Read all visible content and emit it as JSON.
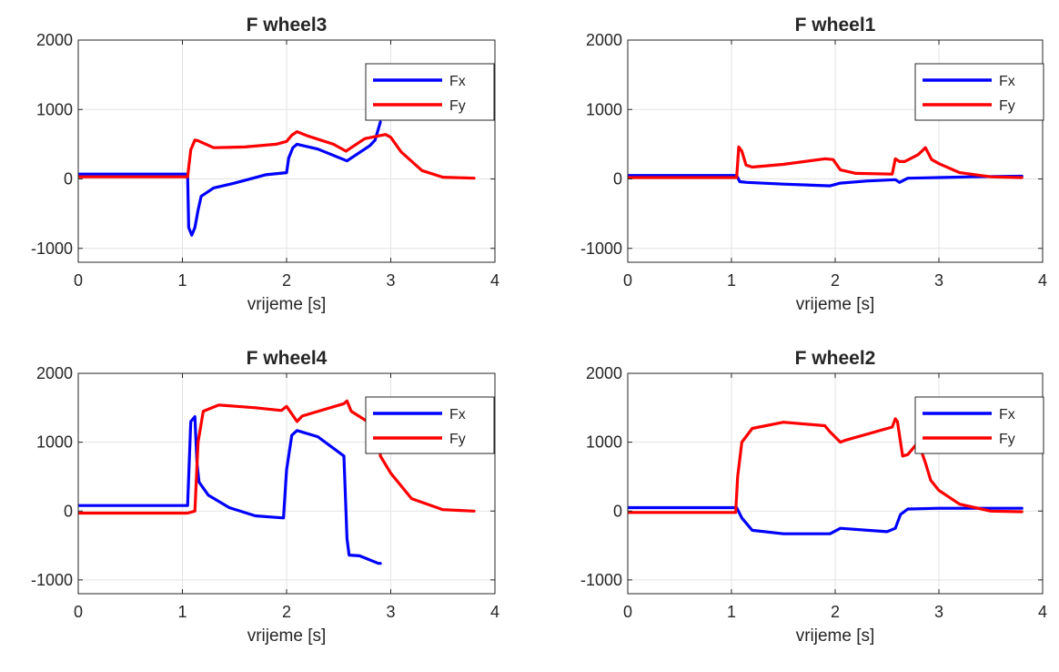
{
  "figure": {
    "colors": {
      "Fx": "#0000ff",
      "Fy": "#ff0000",
      "grid": "#e3e3e3",
      "axis": "#262626"
    }
  },
  "chart_data": [
    {
      "type": "line",
      "title": "F wheel3",
      "xlabel": "vrijeme [s]",
      "ylabel": "",
      "xlim": [
        0,
        4
      ],
      "ylim": [
        -1200,
        2000
      ],
      "xticks": [
        0,
        1,
        2,
        3,
        4
      ],
      "yticks": [
        -1000,
        0,
        1000,
        2000
      ],
      "grid": true,
      "legend": "top-right",
      "series": [
        {
          "name": "Fx",
          "color": "#0000ff",
          "x": [
            0,
            1.05,
            1.06,
            1.09,
            1.12,
            1.15,
            1.18,
            1.3,
            1.5,
            1.8,
            2.0,
            2.02,
            2.06,
            2.1,
            2.3,
            2.58,
            2.65,
            2.8,
            2.85,
            2.9
          ],
          "y": [
            70,
            70,
            -700,
            -810,
            -700,
            -450,
            -250,
            -130,
            -60,
            60,
            90,
            300,
            450,
            500,
            430,
            260,
            330,
            480,
            560,
            820
          ]
        },
        {
          "name": "Fy",
          "color": "#ff0000",
          "x": [
            0,
            1.05,
            1.08,
            1.12,
            1.15,
            1.3,
            1.6,
            1.9,
            2.0,
            2.05,
            2.1,
            2.2,
            2.45,
            2.57,
            2.6,
            2.75,
            2.95,
            3.0,
            3.1,
            3.3,
            3.5,
            3.8
          ],
          "y": [
            30,
            30,
            420,
            560,
            550,
            450,
            460,
            500,
            540,
            630,
            680,
            620,
            500,
            400,
            430,
            580,
            640,
            600,
            390,
            120,
            25,
            10
          ]
        }
      ]
    },
    {
      "type": "line",
      "title": "F wheel1",
      "xlabel": "vrijeme [s]",
      "ylabel": "",
      "xlim": [
        0,
        4
      ],
      "ylim": [
        -1200,
        2000
      ],
      "xticks": [
        0,
        1,
        2,
        3,
        4
      ],
      "yticks": [
        -1000,
        0,
        1000,
        2000
      ],
      "grid": true,
      "legend": "top-right",
      "series": [
        {
          "name": "Fx",
          "color": "#0000ff",
          "x": [
            0,
            1.05,
            1.08,
            1.15,
            1.5,
            1.95,
            2.05,
            2.3,
            2.58,
            2.62,
            2.7,
            3.0,
            3.3,
            3.8
          ],
          "y": [
            50,
            50,
            -40,
            -50,
            -75,
            -100,
            -60,
            -30,
            -10,
            -50,
            10,
            20,
            30,
            40
          ]
        },
        {
          "name": "Fy",
          "color": "#ff0000",
          "x": [
            0,
            1.05,
            1.07,
            1.1,
            1.14,
            1.2,
            1.5,
            1.9,
            1.98,
            2.05,
            2.2,
            2.55,
            2.58,
            2.62,
            2.67,
            2.8,
            2.87,
            2.93,
            3.0,
            3.2,
            3.5,
            3.8
          ],
          "y": [
            20,
            20,
            460,
            400,
            200,
            170,
            210,
            290,
            280,
            130,
            80,
            70,
            290,
            250,
            250,
            350,
            450,
            280,
            220,
            90,
            30,
            20
          ]
        }
      ]
    },
    {
      "type": "line",
      "title": "F wheel4",
      "xlabel": "vrijeme [s]",
      "ylabel": "",
      "xlim": [
        0,
        4
      ],
      "ylim": [
        -1200,
        2000
      ],
      "xticks": [
        0,
        1,
        2,
        3,
        4
      ],
      "yticks": [
        -1000,
        0,
        1000,
        2000
      ],
      "grid": true,
      "legend": "top-right",
      "series": [
        {
          "name": "Fx",
          "color": "#0000ff",
          "x": [
            0,
            1.05,
            1.08,
            1.12,
            1.14,
            1.16,
            1.25,
            1.45,
            1.7,
            1.97,
            2.0,
            2.05,
            2.1,
            2.3,
            2.55,
            2.58,
            2.6,
            2.7,
            2.88,
            2.9
          ],
          "y": [
            80,
            80,
            1300,
            1370,
            700,
            420,
            230,
            50,
            -70,
            -100,
            600,
            1100,
            1170,
            1080,
            800,
            -400,
            -640,
            -650,
            -760,
            -760
          ]
        },
        {
          "name": "Fy",
          "color": "#ff0000",
          "x": [
            0,
            1.05,
            1.12,
            1.15,
            1.2,
            1.35,
            1.7,
            1.95,
            2.0,
            2.1,
            2.15,
            2.55,
            2.58,
            2.62,
            2.88,
            2.9,
            3.0,
            3.2,
            3.5,
            3.8
          ],
          "y": [
            -30,
            -30,
            0,
            1000,
            1450,
            1540,
            1500,
            1460,
            1520,
            1300,
            1380,
            1560,
            1600,
            1450,
            1200,
            800,
            550,
            180,
            20,
            0
          ]
        }
      ]
    },
    {
      "type": "line",
      "title": "F wheel2",
      "xlabel": "vrijeme [s]",
      "ylabel": "",
      "xlim": [
        0,
        4
      ],
      "ylim": [
        -1200,
        2000
      ],
      "xticks": [
        0,
        1,
        2,
        3,
        4
      ],
      "yticks": [
        -1000,
        0,
        1000,
        2000
      ],
      "grid": true,
      "legend": "top-right",
      "series": [
        {
          "name": "Fx",
          "color": "#0000ff",
          "x": [
            0,
            1.05,
            1.1,
            1.2,
            1.5,
            1.95,
            2.05,
            2.5,
            2.58,
            2.63,
            2.7,
            3.0,
            3.8
          ],
          "y": [
            50,
            50,
            -100,
            -280,
            -330,
            -330,
            -250,
            -300,
            -250,
            -50,
            30,
            40,
            40
          ]
        },
        {
          "name": "Fy",
          "color": "#ff0000",
          "x": [
            0,
            1.04,
            1.06,
            1.1,
            1.2,
            1.5,
            1.9,
            1.95,
            2.05,
            2.1,
            2.55,
            2.58,
            2.6,
            2.65,
            2.7,
            2.8,
            2.87,
            2.92,
            3.0,
            3.2,
            3.5,
            3.8
          ],
          "y": [
            -20,
            -20,
            500,
            1000,
            1200,
            1290,
            1240,
            1150,
            1000,
            1030,
            1220,
            1340,
            1300,
            800,
            820,
            1000,
            700,
            450,
            300,
            100,
            0,
            -10
          ]
        }
      ]
    }
  ]
}
